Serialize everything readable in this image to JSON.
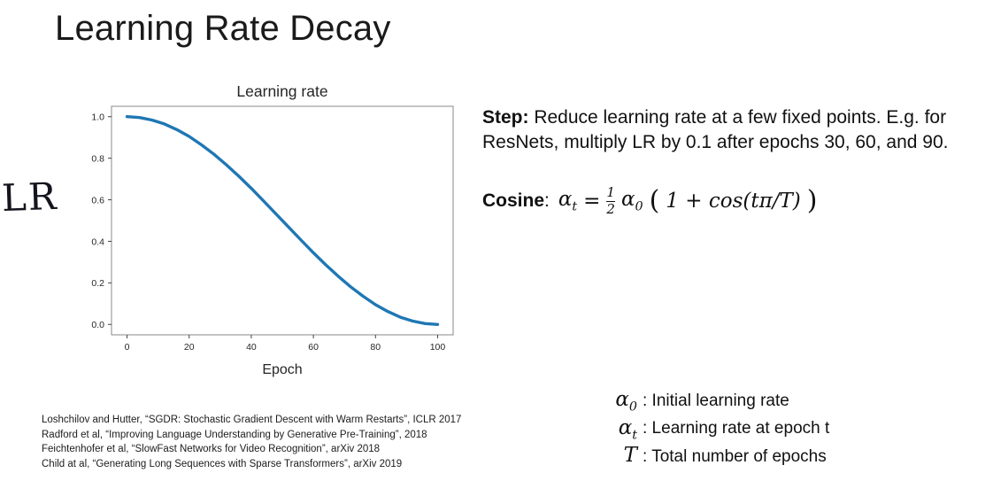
{
  "slide": {
    "title": "Learning Rate Decay",
    "handwritten_label": "LR"
  },
  "step": {
    "label": "Step:",
    "text": " Reduce learning rate at a few fixed points. E.g. for ResNets, multiply LR by 0.1 after epochs 30, 60, and 90."
  },
  "cosine": {
    "label": "Cosine",
    "colon": ":",
    "lhs_base": "α",
    "lhs_sub": "t",
    "eq": "=",
    "num": "1",
    "den": "2",
    "coef_base": "α",
    "coef_sub": "0",
    "open": "(",
    "body": "1 + cos(tπ/T)",
    "close": ")"
  },
  "chart_data": {
    "type": "line",
    "title": "Learning rate",
    "xlabel": "Epoch",
    "ylabel": "",
    "x": [
      0,
      4,
      8,
      12,
      16,
      20,
      24,
      28,
      32,
      36,
      40,
      44,
      48,
      52,
      56,
      60,
      64,
      68,
      72,
      76,
      80,
      84,
      88,
      92,
      96,
      100
    ],
    "y": [
      1.0,
      0.996,
      0.984,
      0.965,
      0.938,
      0.905,
      0.864,
      0.819,
      0.768,
      0.713,
      0.655,
      0.594,
      0.531,
      0.469,
      0.406,
      0.345,
      0.287,
      0.232,
      0.181,
      0.136,
      0.095,
      0.062,
      0.035,
      0.016,
      0.004,
      0.0
    ],
    "xlim": [
      -5,
      105
    ],
    "ylim": [
      -0.05,
      1.05
    ],
    "x_ticks": [
      0,
      20,
      40,
      60,
      80,
      100
    ],
    "y_ticks": [
      0.0,
      0.2,
      0.4,
      0.6,
      0.8,
      1.0
    ],
    "line_color": "#1f77b4",
    "grid": false,
    "legend_position": "none"
  },
  "citations": [
    "Loshchilov and Hutter, “SGDR: Stochastic Gradient Descent with Warm Restarts”, ICLR 2017",
    "Radford et al, “Improving Language Understanding by Generative Pre-Training”, 2018",
    "Feichtenhofer et al, “SlowFast Networks for Video Recognition”, arXiv 2018",
    "Child at al, “Generating Long Sequences with Sparse Transformers”, arXiv 2019"
  ],
  "legend": {
    "items": [
      {
        "base": "α",
        "sub": "0",
        "text": ": Initial learning rate"
      },
      {
        "base": "α",
        "sub": "t",
        "text": ": Learning rate at epoch t"
      },
      {
        "base": "T",
        "sub": "",
        "text": ": Total number of epochs"
      }
    ]
  }
}
